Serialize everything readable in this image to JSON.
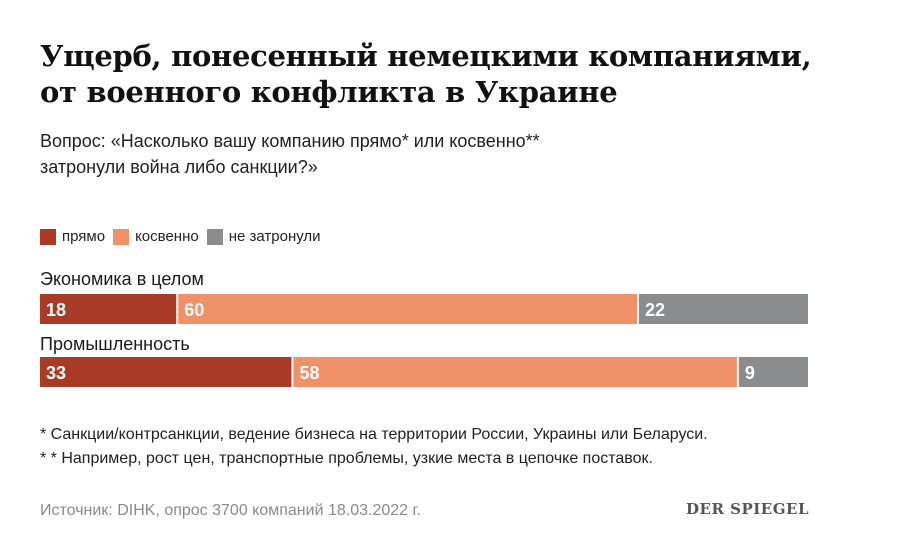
{
  "title_lines": [
    "Ущерб, понесенный немецкими компаниями,",
    "от военного конфликта в Украине"
  ],
  "subtitle_lines": [
    "Вопрос: «Насколько вашу компанию прямо* или косвенно**",
    "затронули война либо санкции?»"
  ],
  "footnotes": [
    "* Санкции/контрсанкции, ведение бизнеса на территории России, Украины или Беларуси.",
    "* * Например, рост цен, транспортные проблемы, узкие места в цепочке поставок."
  ],
  "source": "Источник: DIHK, опрос 3700 компаний 18.03.2022 г.",
  "logo": "DER SPIEGEL",
  "colors": {
    "direct": "#a83a26",
    "indirect": "#f0916a",
    "none": "#8b8c8e"
  },
  "chart_data": {
    "type": "bar",
    "orientation": "horizontal",
    "stacked": true,
    "categories": [
      "Экономика в целом",
      "Промышленность"
    ],
    "series": [
      {
        "name": "прямо",
        "values": [
          18,
          33
        ],
        "color": "#a83a26"
      },
      {
        "name": "косвенно",
        "values": [
          60,
          58
        ],
        "color": "#f0916a"
      },
      {
        "name": "не затронули",
        "values": [
          22,
          9
        ],
        "color": "#8b8c8e"
      }
    ],
    "legend": "top-left",
    "grid": false
  }
}
